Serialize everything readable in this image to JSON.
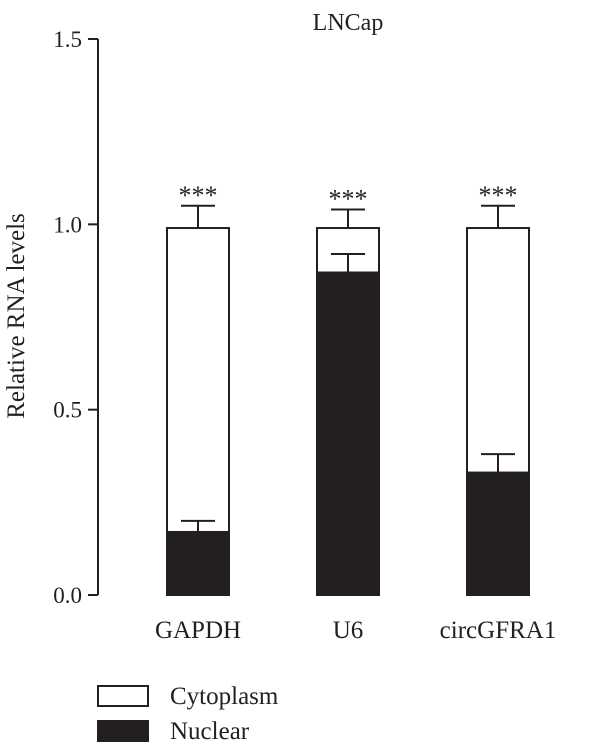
{
  "chart_data": {
    "type": "bar",
    "stacked": true,
    "title": "LNCap",
    "ylabel": "Relative RNA levels",
    "xlabel": "",
    "ylim": [
      0,
      1.5
    ],
    "yticks": [
      "0.0",
      "0.5",
      "1.0",
      "1.5"
    ],
    "categories": [
      "GAPDH",
      "U6",
      "circGFRA1"
    ],
    "series": [
      {
        "name": "Nuclear",
        "values": [
          0.17,
          0.87,
          0.33
        ],
        "errors": [
          0.03,
          0.05,
          0.05
        ],
        "fill": "#231f20"
      },
      {
        "name": "Cytoplasm",
        "values": [
          0.82,
          0.12,
          0.66
        ],
        "errors": [
          0.06,
          0.05,
          0.06
        ],
        "fill": "#ffffff"
      }
    ],
    "annotations": [
      "***",
      "***",
      "***"
    ],
    "legend_position": "bottom-left",
    "grid": false
  }
}
